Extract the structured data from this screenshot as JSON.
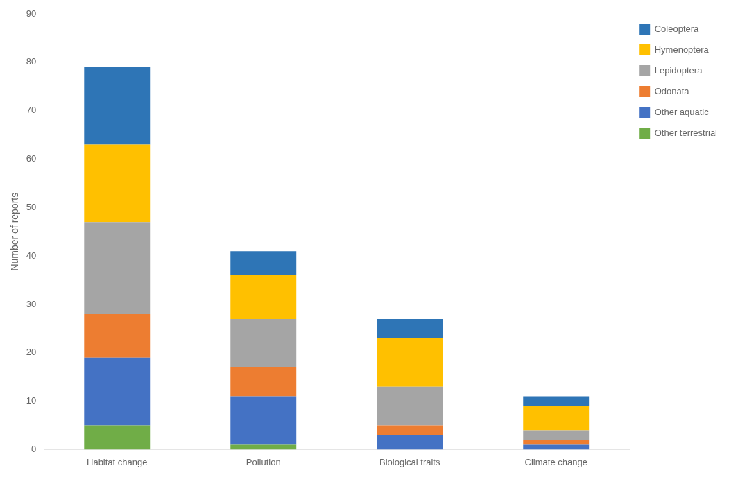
{
  "chart_data": {
    "type": "bar",
    "stacked": true,
    "categories": [
      "Habitat change",
      "Pollution",
      "Biological traits",
      "Climate change"
    ],
    "series": [
      {
        "name": "Other terrestrial",
        "color": "#70AD47",
        "values": [
          5,
          1,
          0,
          0
        ]
      },
      {
        "name": "Other aquatic",
        "color": "#4472C4",
        "values": [
          14,
          10,
          3,
          1
        ]
      },
      {
        "name": "Odonata",
        "color": "#ED7D31",
        "values": [
          9,
          6,
          2,
          1
        ]
      },
      {
        "name": "Lepidoptera",
        "color": "#A5A5A5",
        "values": [
          19,
          10,
          8,
          2
        ]
      },
      {
        "name": "Hymenoptera",
        "color": "#FFC000",
        "values": [
          16,
          9,
          10,
          5
        ]
      },
      {
        "name": "Coleoptera",
        "color": "#2E75B6",
        "values": [
          16,
          5,
          4,
          2
        ]
      }
    ],
    "ylabel": "Number of reports",
    "ylim": [
      0,
      90
    ],
    "yticks": [
      0,
      10,
      20,
      30,
      40,
      50,
      60,
      70,
      80,
      90
    ],
    "grid": false,
    "legend": "right"
  }
}
